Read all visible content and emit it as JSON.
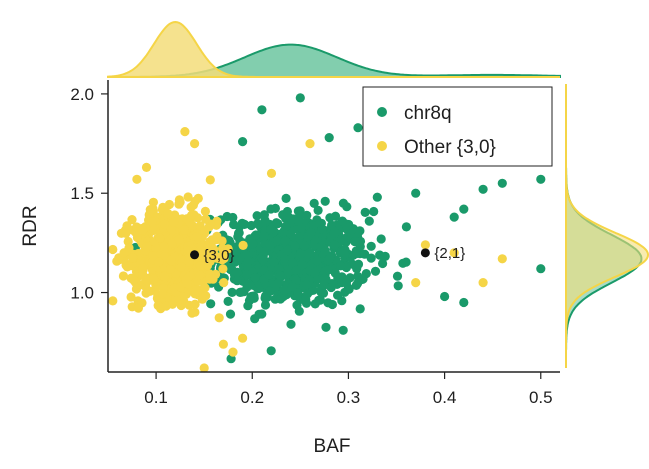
{
  "chart_data": {
    "type": "scatter",
    "title": "",
    "xlabel": "BAF",
    "ylabel": "RDR",
    "xlim": [
      0.05,
      0.52
    ],
    "ylim": [
      0.6,
      2.07
    ],
    "x_ticks": [
      0.1,
      0.2,
      0.3,
      0.4,
      0.5
    ],
    "x_tick_labels": [
      "0.1",
      "0.2",
      "0.3",
      "0.4",
      "0.5"
    ],
    "y_ticks": [
      1.0,
      1.5,
      2.0
    ],
    "y_tick_labels": [
      "1.0",
      "1.5",
      "2.0"
    ],
    "grid": false,
    "legend_position": "top-right",
    "marginal_plots": "density (top: BAF, right: RDR)",
    "series": [
      {
        "name": "chr8q",
        "color": "#1a9a6a",
        "n_points_approx": 700,
        "center": {
          "x": 0.24,
          "y": 1.17
        },
        "spread": {
          "x": 0.04,
          "y": 0.12
        },
        "outliers": [
          {
            "x": 0.21,
            "y": 1.92
          },
          {
            "x": 0.25,
            "y": 1.98
          },
          {
            "x": 0.19,
            "y": 1.76
          },
          {
            "x": 0.31,
            "y": 1.83
          },
          {
            "x": 0.28,
            "y": 1.78
          },
          {
            "x": 0.48,
            "y": 1.8
          },
          {
            "x": 0.5,
            "y": 1.57
          },
          {
            "x": 0.5,
            "y": 1.12
          },
          {
            "x": 0.44,
            "y": 1.52
          },
          {
            "x": 0.46,
            "y": 1.55
          },
          {
            "x": 0.41,
            "y": 1.38
          },
          {
            "x": 0.42,
            "y": 1.42
          },
          {
            "x": 0.42,
            "y": 0.95
          },
          {
            "x": 0.4,
            "y": 0.98
          },
          {
            "x": 0.33,
            "y": 1.48
          },
          {
            "x": 0.37,
            "y": 1.5
          }
        ]
      },
      {
        "name": "Other {3,0}",
        "color": "#f5d547",
        "n_points_approx": 800,
        "center": {
          "x": 0.12,
          "y": 1.19
        },
        "spread": {
          "x": 0.022,
          "y": 0.11
        },
        "outliers": [
          {
            "x": 0.13,
            "y": 1.81
          },
          {
            "x": 0.14,
            "y": 1.75
          },
          {
            "x": 0.09,
            "y": 1.63
          },
          {
            "x": 0.08,
            "y": 1.57
          },
          {
            "x": 0.15,
            "y": 0.62
          },
          {
            "x": 0.17,
            "y": 0.74
          },
          {
            "x": 0.18,
            "y": 0.7
          },
          {
            "x": 0.19,
            "y": 0.77
          },
          {
            "x": 0.46,
            "y": 1.17
          },
          {
            "x": 0.44,
            "y": 1.05
          },
          {
            "x": 0.37,
            "y": 1.05
          },
          {
            "x": 0.38,
            "y": 1.24
          },
          {
            "x": 0.41,
            "y": 1.2
          },
          {
            "x": 0.26,
            "y": 1.75
          },
          {
            "x": 0.22,
            "y": 1.6
          }
        ]
      }
    ],
    "annotations": [
      {
        "label": "{3,0}",
        "x": 0.14,
        "y": 1.19
      },
      {
        "label": "{2,1}",
        "x": 0.38,
        "y": 1.2
      }
    ],
    "colors": {
      "chr8q": "#1a9a6a",
      "other": "#f5d547",
      "chr8q_fill": "#6cc5a0",
      "other_fill": "#f3dd7a",
      "annotation": "#111111"
    }
  }
}
